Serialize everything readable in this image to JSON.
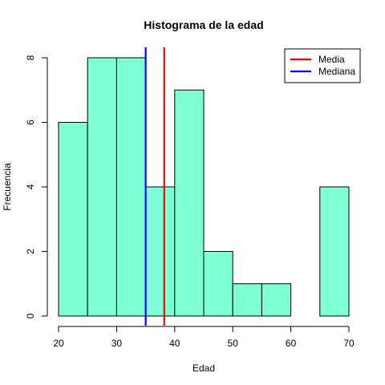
{
  "chart_data": {
    "type": "bar",
    "title": "Histograma de la edad",
    "xlabel": "Edad",
    "ylabel": "Frecuencia",
    "bins": [
      {
        "start": 20,
        "end": 25,
        "count": 6
      },
      {
        "start": 25,
        "end": 30,
        "count": 8
      },
      {
        "start": 30,
        "end": 35,
        "count": 8
      },
      {
        "start": 35,
        "end": 40,
        "count": 4
      },
      {
        "start": 40,
        "end": 45,
        "count": 7
      },
      {
        "start": 45,
        "end": 50,
        "count": 2
      },
      {
        "start": 50,
        "end": 55,
        "count": 1
      },
      {
        "start": 55,
        "end": 60,
        "count": 1
      },
      {
        "start": 60,
        "end": 65,
        "count": 0
      },
      {
        "start": 65,
        "end": 70,
        "count": 4
      }
    ],
    "xlim": [
      20,
      70
    ],
    "ylim": [
      0,
      8
    ],
    "x_ticks": [
      20,
      30,
      40,
      50,
      60,
      70
    ],
    "y_ticks": [
      0,
      2,
      4,
      6,
      8
    ],
    "bar_color": "#7fffd4",
    "vlines": [
      {
        "name": "Media",
        "value": 38.2,
        "color": "#ff0000"
      },
      {
        "name": "Mediana",
        "value": 35,
        "color": "#0000ff"
      }
    ],
    "legend": {
      "position": "top-right",
      "entries": [
        {
          "label": "Media",
          "color": "#ff0000"
        },
        {
          "label": "Mediana",
          "color": "#0000ff"
        }
      ]
    },
    "grid": false
  }
}
